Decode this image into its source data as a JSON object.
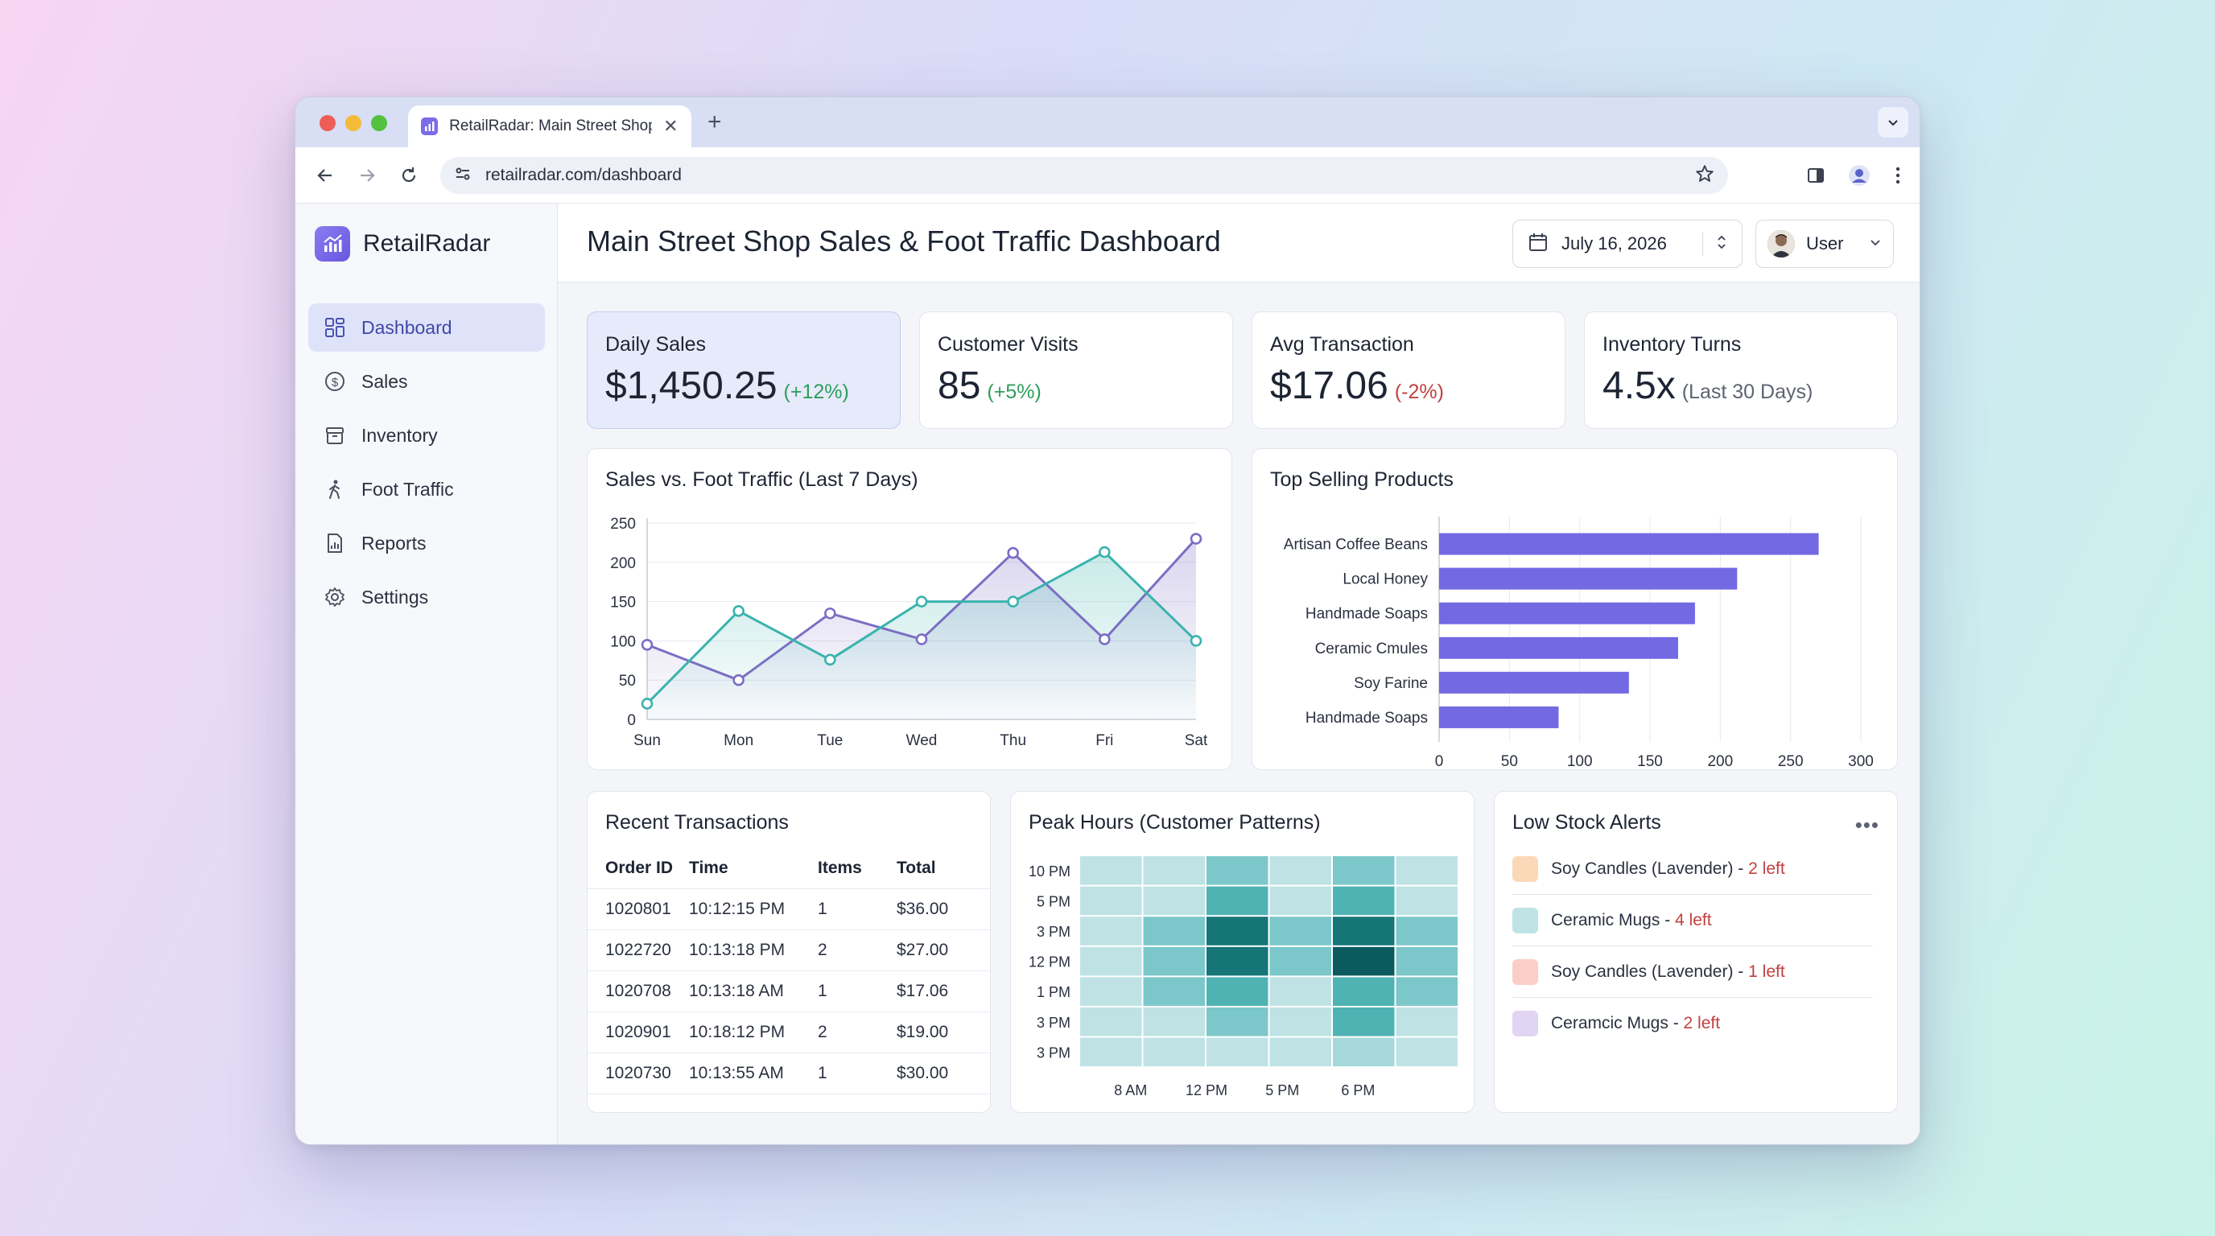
{
  "browser": {
    "tab_title": "RetailRadar: Main Street Shop",
    "url": "retailradar.com/dashboard"
  },
  "sidebar": {
    "brand": "RetailRadar",
    "items": [
      {
        "label": "Dashboard",
        "icon": "grid-icon",
        "active": true
      },
      {
        "label": "Sales",
        "icon": "dollar-circle-icon"
      },
      {
        "label": "Inventory",
        "icon": "box-icon"
      },
      {
        "label": "Foot Traffic",
        "icon": "walking-person-icon"
      },
      {
        "label": "Reports",
        "icon": "report-icon"
      },
      {
        "label": "Settings",
        "icon": "gear-icon"
      }
    ]
  },
  "header": {
    "title": "Main Street Shop Sales & Foot Traffic Dashboard",
    "date": "July 16, 2026",
    "user": "User"
  },
  "kpis": [
    {
      "label": "Daily Sales",
      "value": "$1,450.25",
      "delta": "(+12%)",
      "trend": "positive"
    },
    {
      "label": "Customer Visits",
      "value": "85",
      "delta": "(+5%)",
      "trend": "positive"
    },
    {
      "label": "Avg Transaction",
      "value": "$17.06",
      "delta": "(-2%)",
      "trend": "negative"
    },
    {
      "label": "Inventory Turns",
      "value": "4.5x",
      "delta": "(Last 30 Days)",
      "trend": "neutral"
    }
  ],
  "chart_data": [
    {
      "type": "line",
      "title": "Sales vs. Foot Traffic (Last 7 Days)",
      "categories": [
        "Sun",
        "Mon",
        "Tue",
        "Wed",
        "Thu",
        "Fri",
        "Sat"
      ],
      "series": [
        {
          "values": [
            95,
            50,
            135,
            102,
            212,
            102,
            230
          ],
          "color": "#7a6fc4"
        },
        {
          "values": [
            20,
            138,
            76,
            150,
            150,
            213,
            100
          ],
          "color": "#3ab3ad"
        }
      ],
      "ylim": [
        0,
        250
      ],
      "yticks": [
        0,
        50,
        100,
        150,
        200,
        250
      ],
      "grid": true
    },
    {
      "type": "bar",
      "orientation": "horizontal",
      "title": "Top Selling Products",
      "categories": [
        "Artisan Coffee Beans",
        "Local Honey",
        "Handmade Soaps",
        "Ceramic Cmules",
        "Soy Farine",
        "Handmade Soaps"
      ],
      "values": [
        270,
        212,
        182,
        170,
        135,
        85
      ],
      "xlim": [
        0,
        300
      ],
      "xticks": [
        0,
        50,
        100,
        150,
        200,
        250,
        300
      ],
      "color": "#7269e3",
      "grid": true
    },
    {
      "type": "heatmap",
      "title": "Peak Hours (Customer Patterns)",
      "rows": [
        "10 PM",
        "5 PM",
        "3 PM",
        "12 PM",
        "1 PM",
        "3 PM",
        "3 PM"
      ],
      "x_ticks": [
        "8 AM",
        "12 PM",
        "5 PM",
        "6 PM"
      ],
      "matrix": [
        [
          1,
          1,
          3,
          1,
          3,
          1
        ],
        [
          1,
          1,
          4,
          1,
          4,
          1
        ],
        [
          1,
          3,
          6,
          3,
          6,
          3
        ],
        [
          1,
          3,
          6,
          3,
          7,
          3
        ],
        [
          1,
          3,
          4,
          1,
          4,
          3
        ],
        [
          1,
          1,
          3,
          1,
          4,
          1
        ],
        [
          1,
          1,
          1,
          1,
          2,
          1
        ]
      ],
      "palette": [
        "#ffffff",
        "#bfe3e4",
        "#a7d9da",
        "#7cc7c9",
        "#4fb3b4",
        "#2e9a9c",
        "#157577",
        "#0b5b5e"
      ]
    }
  ],
  "transactions": {
    "title": "Recent Transactions",
    "columns": [
      "Order ID",
      "Time",
      "Items",
      "Total"
    ],
    "rows": [
      [
        "1020801",
        "10:12:15 PM",
        "1",
        "$36.00"
      ],
      [
        "1022720",
        "10:13:18 PM",
        "2",
        "$27.00"
      ],
      [
        "1020708",
        "10:13:18 AM",
        "1",
        "$17.06"
      ],
      [
        "1020901",
        "10:18:12 PM",
        "2",
        "$19.00"
      ],
      [
        "1020730",
        "10:13:55 AM",
        "1",
        "$30.00"
      ]
    ]
  },
  "low_stock": {
    "title": "Low Stock Alerts",
    "items": [
      {
        "name": "Soy Candles (Lavender)",
        "sep": " - ",
        "count": "2 left",
        "color": "#fbd9b8"
      },
      {
        "name": "Ceramic Mugs",
        "sep": " - ",
        "count": "4 left",
        "color": "#bfe3e4"
      },
      {
        "name": "Soy Candles (Lavender)",
        "sep": " - ",
        "count": "1 left",
        "color": "#f9cfc8"
      },
      {
        "name": "Ceramcic Mugs",
        "sep": " - ",
        "count": "2 left",
        "color": "#e2d4f3"
      }
    ]
  }
}
